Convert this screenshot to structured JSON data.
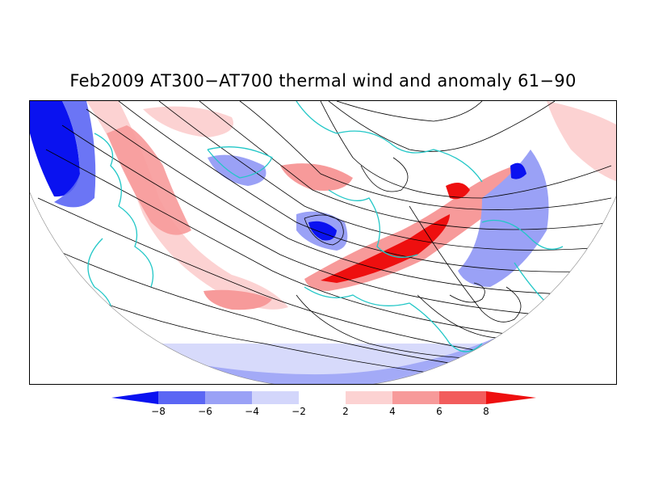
{
  "title": "Feb2009 AT300−AT700 thermal wind and anomaly 61−90",
  "map": {
    "projection": "north-polar-stereographic",
    "coastline_color": "#22c7c7",
    "streamline_color": "#000000"
  },
  "colorbar": {
    "tick_labels": [
      "−8",
      "−6",
      "−4",
      "−2",
      "2",
      "4",
      "6",
      "8"
    ],
    "colors": [
      "#0a12f0",
      "#5b66f4",
      "#9aa1f6",
      "#d3d6fb",
      "#ffffff",
      "#fcd2d2",
      "#f79a9a",
      "#f25c5c",
      "#ee0f0f"
    ]
  }
}
